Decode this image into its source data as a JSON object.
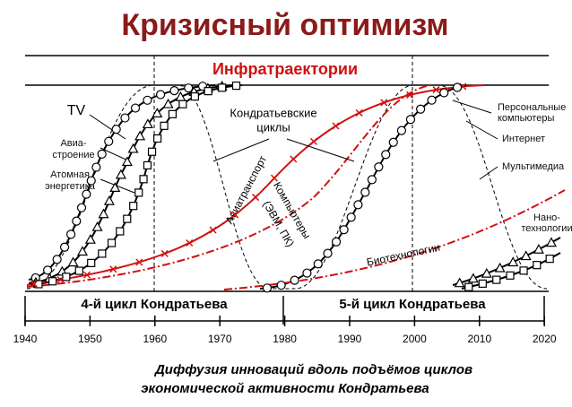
{
  "title": "Кризисный оптимизм",
  "subtitle": "Инфратраектории",
  "labels": {
    "tv": "TV",
    "aviation": [
      "Авиа-",
      "строение"
    ],
    "nuclear": [
      "Атомная",
      "энергетика"
    ],
    "cycles": [
      "Кондратьевские",
      "циклы"
    ],
    "air_transport": "Авиатранспорт",
    "computers": [
      "Компьютеры",
      "(ЭВМ, ПК)"
    ],
    "biotech": "Биотехнологии",
    "pc": [
      "Персональные",
      "компьютеры"
    ],
    "internet": "Интернет",
    "multimedia": "Мультимедиа",
    "nano": [
      "Нано-",
      "технологии"
    ]
  },
  "cycle_bands": [
    "4-й цикл Кондратьева",
    "5-й цикл Кондратьева"
  ],
  "axis_labels": [
    "1940",
    "1950",
    "1960",
    "1970",
    "1980",
    "1990",
    "2000",
    "2010",
    "2020"
  ],
  "caption": [
    "Диффузия инноваций вдоль подъёмов циклов",
    "экономической активности Кондратьева"
  ]
}
